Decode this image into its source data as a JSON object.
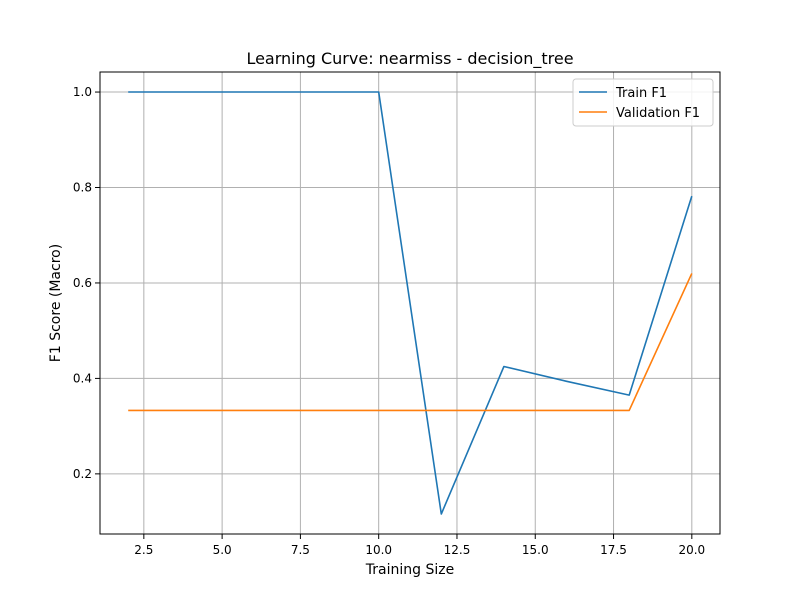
{
  "chart_data": {
    "type": "line",
    "title": "Learning Curve: nearmiss - decision_tree",
    "xlabel": "Training Size",
    "ylabel": "F1 Score (Macro)",
    "xlim": [
      1.1,
      20.9
    ],
    "ylim": [
      0.074,
      1.042
    ],
    "xticks": [
      2.5,
      5.0,
      7.5,
      10.0,
      12.5,
      15.0,
      17.5,
      20.0
    ],
    "xtick_labels": [
      "2.5",
      "5.0",
      "7.5",
      "10.0",
      "12.5",
      "15.0",
      "17.5",
      "20.0"
    ],
    "yticks": [
      0.2,
      0.4,
      0.6,
      0.8,
      1.0
    ],
    "ytick_labels": [
      "0.2",
      "0.4",
      "0.6",
      "0.8",
      "1.0"
    ],
    "grid": true,
    "legend_position": "top-right",
    "series": [
      {
        "name": "Train F1",
        "color": "#1f77b4",
        "x": [
          2,
          4,
          6,
          8,
          10,
          12,
          14,
          16,
          18,
          20
        ],
        "y": [
          1.0,
          1.0,
          1.0,
          1.0,
          1.0,
          0.116,
          0.425,
          0.394,
          0.365,
          0.782
        ]
      },
      {
        "name": "Validation F1",
        "color": "#ff7f0e",
        "x": [
          2,
          4,
          6,
          8,
          10,
          12,
          14,
          16,
          18,
          20
        ],
        "y": [
          0.333,
          0.333,
          0.333,
          0.333,
          0.333,
          0.333,
          0.333,
          0.333,
          0.333,
          0.62
        ]
      }
    ]
  }
}
